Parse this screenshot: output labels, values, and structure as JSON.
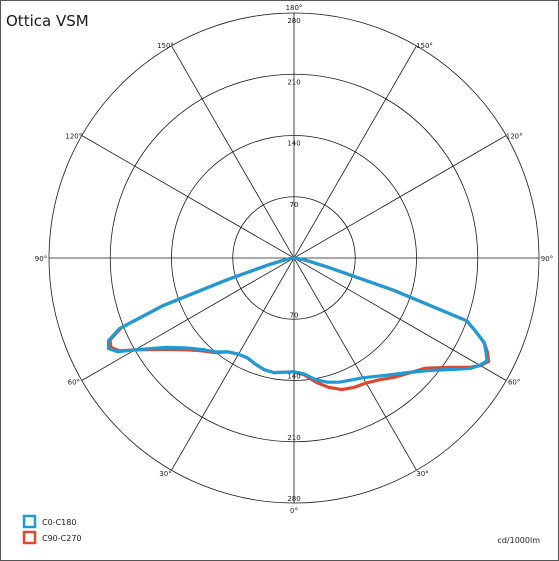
{
  "chart_data": {
    "type": "polar",
    "title": "Ottica VSM",
    "unit_label": "cd/1000lm",
    "radial_max": 280,
    "radial_ticks": [
      70,
      140,
      210,
      280
    ],
    "ring_labels": [
      "70",
      "140",
      "210",
      "280",
      "70",
      "140",
      "210",
      "280"
    ],
    "angle_labels": [
      "180°",
      "150°",
      "150°",
      "120°",
      "120°",
      "90°",
      "90°",
      "60°",
      "60°",
      "30°",
      "30°",
      "0°"
    ],
    "grid": true,
    "legend_position": "bottom-left",
    "series": [
      {
        "name": "C0-C180",
        "color": "#1e9ad6",
        "points": [
          [
            -90,
            0
          ],
          [
            -80,
            8
          ],
          [
            -75,
            30
          ],
          [
            -72,
            80
          ],
          [
            -70,
            160
          ],
          [
            -68,
            215
          ],
          [
            -66,
            232
          ],
          [
            -64,
            236
          ],
          [
            -62,
            228
          ],
          [
            -60,
            210
          ],
          [
            -55,
            178
          ],
          [
            -50,
            160
          ],
          [
            -45,
            148
          ],
          [
            -40,
            140
          ],
          [
            -35,
            131
          ],
          [
            -30,
            127
          ],
          [
            -25,
            126
          ],
          [
            -20,
            129
          ],
          [
            -15,
            132
          ],
          [
            -10,
            133
          ],
          [
            -5,
            131
          ],
          [
            0,
            130
          ],
          [
            5,
            133
          ],
          [
            10,
            141
          ],
          [
            15,
            147
          ],
          [
            20,
            151
          ],
          [
            25,
            154
          ],
          [
            30,
            158
          ],
          [
            35,
            165
          ],
          [
            40,
            174
          ],
          [
            45,
            185
          ],
          [
            50,
            200
          ],
          [
            55,
            222
          ],
          [
            58,
            238
          ],
          [
            60,
            245
          ],
          [
            62,
            250
          ],
          [
            64,
            244
          ],
          [
            66,
            238
          ],
          [
            68,
            224
          ],
          [
            70,
            210
          ],
          [
            72,
            120
          ],
          [
            75,
            40
          ],
          [
            80,
            12
          ],
          [
            90,
            0
          ]
        ]
      },
      {
        "name": "C90-C270",
        "color": "#e0472c",
        "points": [
          [
            -90,
            0
          ],
          [
            -80,
            8
          ],
          [
            -75,
            30
          ],
          [
            -72,
            80
          ],
          [
            -70,
            160
          ],
          [
            -68,
            213
          ],
          [
            -66,
            230
          ],
          [
            -64,
            233
          ],
          [
            -62,
            226
          ],
          [
            -60,
            210
          ],
          [
            -55,
            182
          ],
          [
            -50,
            163
          ],
          [
            -45,
            150
          ],
          [
            -40,
            141
          ],
          [
            -35,
            131
          ],
          [
            -30,
            127
          ],
          [
            -25,
            126
          ],
          [
            -20,
            129
          ],
          [
            -15,
            132
          ],
          [
            -10,
            133
          ],
          [
            -5,
            131
          ],
          [
            0,
            130
          ],
          [
            5,
            134
          ],
          [
            10,
            144
          ],
          [
            15,
            153
          ],
          [
            20,
            160
          ],
          [
            25,
            163
          ],
          [
            30,
            165
          ],
          [
            35,
            170
          ],
          [
            40,
            178
          ],
          [
            45,
            186
          ],
          [
            50,
            196
          ],
          [
            55,
            218
          ],
          [
            58,
            236
          ],
          [
            60,
            246
          ],
          [
            62,
            252
          ],
          [
            64,
            246
          ],
          [
            66,
            238
          ],
          [
            68,
            224
          ],
          [
            70,
            210
          ],
          [
            72,
            120
          ],
          [
            75,
            40
          ],
          [
            80,
            12
          ],
          [
            90,
            0
          ]
        ]
      }
    ]
  }
}
